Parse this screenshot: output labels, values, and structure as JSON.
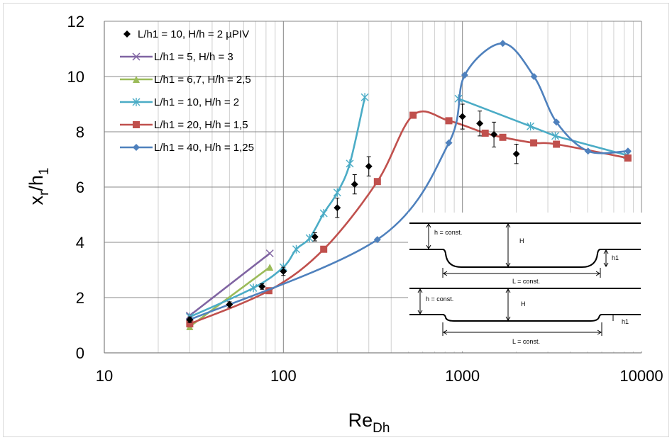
{
  "chart_data": {
    "type": "line",
    "x_scale": "log",
    "xlim": [
      10,
      10000
    ],
    "ylim": [
      0,
      12
    ],
    "grid": true,
    "legend_position": "top-left",
    "x_ticks": [
      "10",
      "100",
      "1000",
      "10000"
    ],
    "y_ticks": [
      "0",
      "2",
      "4",
      "6",
      "8",
      "10",
      "12"
    ],
    "xlabel": {
      "main": "Re",
      "sub": "Dh"
    },
    "ylabel": {
      "main": "x",
      "sub1": "r",
      "mid": "/h",
      "sub2": "1"
    },
    "series": [
      {
        "name": "L/h1 = 10, H/h = 2 µPIV",
        "color": "#000000",
        "marker": "diamond",
        "line": false,
        "x": [
          30,
          50,
          76,
          100,
          150,
          200,
          250,
          300,
          1000,
          1250,
          1500,
          2000
        ],
        "y": [
          1.2,
          1.75,
          2.4,
          2.95,
          4.2,
          5.25,
          6.1,
          6.75,
          8.55,
          8.3,
          7.9,
          7.2
        ],
        "err": [
          0.1,
          0.1,
          0.1,
          0.15,
          0.15,
          0.35,
          0.35,
          0.35,
          0.45,
          0.45,
          0.45,
          0.35
        ]
      },
      {
        "name": "L/h1 = 5, H/h = 3",
        "color": "#8064A2",
        "marker": "x",
        "line": true,
        "x": [
          30,
          84
        ],
        "y": [
          1.35,
          3.6
        ]
      },
      {
        "name": "L/h1 = 6,7, H/h = 2,5",
        "color": "#9BBB59",
        "marker": "triangle",
        "line": true,
        "x": [
          30,
          84
        ],
        "y": [
          0.95,
          3.1
        ]
      },
      {
        "name": "L/h1 = 10, H/h = 2",
        "color": "#4BACC6",
        "marker": "star",
        "line": true,
        "smooth": true,
        "x": [
          30,
          68,
          100,
          118,
          140,
          168,
          200,
          235,
          285
        ],
        "y": [
          1.3,
          2.35,
          3.1,
          3.75,
          4.15,
          5.05,
          5.8,
          6.85,
          9.25
        ]
      },
      {
        "name": "",
        "color": "#4BACC6",
        "marker": "star",
        "line": true,
        "legend": false,
        "x": [
          950,
          2400,
          3300,
          8300
        ],
        "y": [
          9.2,
          8.2,
          7.85,
          7.15
        ]
      },
      {
        "name": "L/h1 = 20, H/h = 1,5",
        "color": "#C0504D",
        "marker": "square",
        "line": true,
        "smooth": true,
        "x": [
          30,
          83,
          168,
          335,
          530,
          840,
          1340,
          1680,
          2500,
          3350,
          8400
        ],
        "y": [
          1.05,
          2.25,
          3.75,
          6.2,
          8.6,
          8.4,
          7.95,
          7.8,
          7.6,
          7.55,
          7.05
        ]
      },
      {
        "name": "L/h1 = 40, H/h = 1,25",
        "color": "#4F81BD",
        "marker": "diamond",
        "line": true,
        "smooth": true,
        "x": [
          30,
          335,
          840,
          1030,
          1680,
          2510,
          3350,
          5030,
          8400
        ],
        "y": [
          1.2,
          4.1,
          7.6,
          10.05,
          11.2,
          10.0,
          8.35,
          7.3,
          7.3
        ]
      }
    ],
    "inset": {
      "top_labels": [
        "h = const.",
        "H",
        "h1",
        "L = const."
      ],
      "bottom_labels": [
        "h = const.",
        "H",
        "h1",
        "L = const."
      ]
    }
  }
}
